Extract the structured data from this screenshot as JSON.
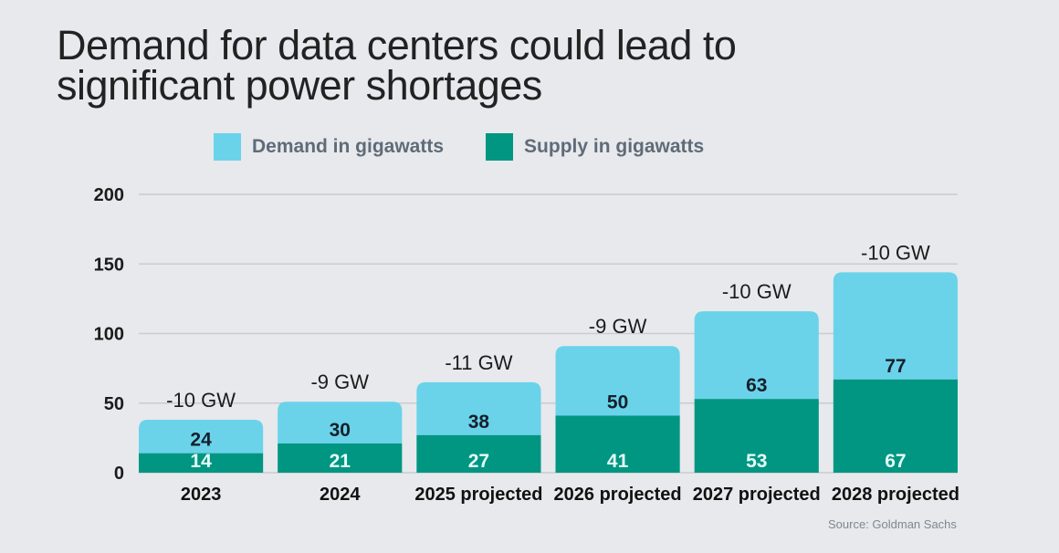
{
  "title": "Demand for data centers could lead to significant power shortages",
  "legend": [
    {
      "label": "Demand in gigawatts",
      "color": "#6ad3ea"
    },
    {
      "label": "Supply in gigawatts",
      "color": "#009682"
    }
  ],
  "source": "Source: Goldman Sachs",
  "chart_data": {
    "type": "bar",
    "stacked": true,
    "title": "Demand for data centers could lead to significant power shortages",
    "xlabel": "",
    "ylabel": "",
    "ylim": [
      0,
      200
    ],
    "yticks": [
      0,
      50,
      100,
      150,
      200
    ],
    "grid": true,
    "legend_position": "top",
    "categories": [
      "2023",
      "2024",
      "2025 projected",
      "2026 projected",
      "2027 projected",
      "2028 projected"
    ],
    "series": [
      {
        "name": "Supply in gigawatts",
        "color": "#009682",
        "values": [
          14,
          21,
          27,
          41,
          53,
          67
        ]
      },
      {
        "name": "Demand in gigawatts",
        "color": "#6ad3ea",
        "values": [
          24,
          30,
          38,
          50,
          63,
          77
        ]
      }
    ],
    "annotations": [
      "-10 GW",
      "-9 GW",
      "-11 GW",
      "-9 GW",
      "-10 GW",
      "-10 GW"
    ],
    "source": "Source: Goldman Sachs"
  }
}
